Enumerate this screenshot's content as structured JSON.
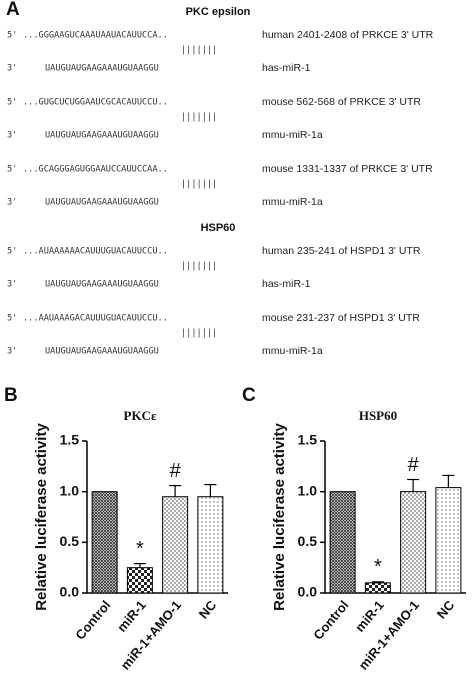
{
  "panel_a": {
    "label": "A",
    "groups": [
      {
        "title": "PKC epsilon",
        "rows": [
          {
            "prime5": "5'",
            "seq": "...GGGAAGUCAAAUAAUACAUUCCA..",
            "pairs": "|||||||",
            "desc": "human 2401-2408 of PRKCE 3' UTR",
            "prime3": "3'",
            "mirna_seq": "UAUGUAUGAAGAAAUGUAAGGU",
            "mirna": "has-miR-1"
          },
          {
            "prime5": "5'",
            "seq": "...GUGCUCUGGAAUCGCACAUUCCU..",
            "pairs": "|||||||",
            "desc": "mouse 562-568 of PRKCE 3' UTR",
            "prime3": "3'",
            "mirna_seq": "UAUGUAUGAAGAAAUGUAAGGU",
            "mirna": "mmu-miR-1a"
          },
          {
            "prime5": "5'",
            "seq": "...GCAGGGAGUGGAAUCCAUUCCAA..",
            "pairs": "|||||||",
            "desc": "mouse 1331-1337 of PRKCE 3' UTR",
            "prime3": "3'",
            "mirna_seq": "UAUGUAUGAAGAAAUGUAAGGU",
            "mirna": "mmu-miR-1a"
          }
        ]
      },
      {
        "title": "HSP60",
        "rows": [
          {
            "prime5": "5'",
            "seq": "...AUAAAAAACAUUUGUACAUUCCU..",
            "pairs": "|||||||",
            "desc": "human 235-241 of HSPD1 3' UTR",
            "prime3": "3'",
            "mirna_seq": "UAUGUAUGAAGAAAUGUAAGGU",
            "mirna": "has-miR-1"
          },
          {
            "prime5": "5'",
            "seq": "...AAUAAAGACAUUUGUACAUUCCU..",
            "pairs": "|||||||",
            "desc": "mouse 231-237 of HSPD1 3' UTR",
            "prime3": "3'",
            "mirna_seq": "UAUGUAUGAAGAAAUGUAAGGU",
            "mirna": "mmu-miR-1a"
          }
        ]
      }
    ]
  },
  "chart_data": [
    {
      "panel": "B",
      "type": "bar",
      "title": "PKCε",
      "ylabel": "Relative luciferase activity",
      "categories": [
        "Control",
        "miR-1",
        "miR-1+AMO-1",
        "NC"
      ],
      "values": [
        1.0,
        0.25,
        0.95,
        0.95
      ],
      "errors": [
        null,
        0.04,
        0.11,
        0.12
      ],
      "annotations": [
        null,
        "*",
        "#",
        null
      ],
      "ylim": [
        0,
        1.5
      ],
      "yticks": [
        {
          "value": 0,
          "label": "0.0"
        },
        {
          "value": 0.5,
          "label": "0.5"
        },
        {
          "value": 1,
          "label": "1.0"
        },
        {
          "value": 1.5,
          "label": "1.5"
        }
      ]
    },
    {
      "panel": "C",
      "type": "bar",
      "title": "HSP60",
      "ylabel": "Relative luciferase activity",
      "categories": [
        "Control",
        "miR-1",
        "miR-1+AMO-1",
        "NC"
      ],
      "values": [
        1.0,
        0.1,
        1.0,
        1.04
      ],
      "errors": [
        null,
        0.01,
        0.12,
        0.12
      ],
      "annotations": [
        null,
        "*",
        "#",
        null
      ],
      "ylim": [
        0,
        1.5
      ],
      "yticks": [
        {
          "value": 0,
          "label": "0.0"
        },
        {
          "value": 0.5,
          "label": "0.5"
        },
        {
          "value": 1,
          "label": "1.0"
        },
        {
          "value": 1.5,
          "label": "1.5"
        }
      ]
    }
  ]
}
